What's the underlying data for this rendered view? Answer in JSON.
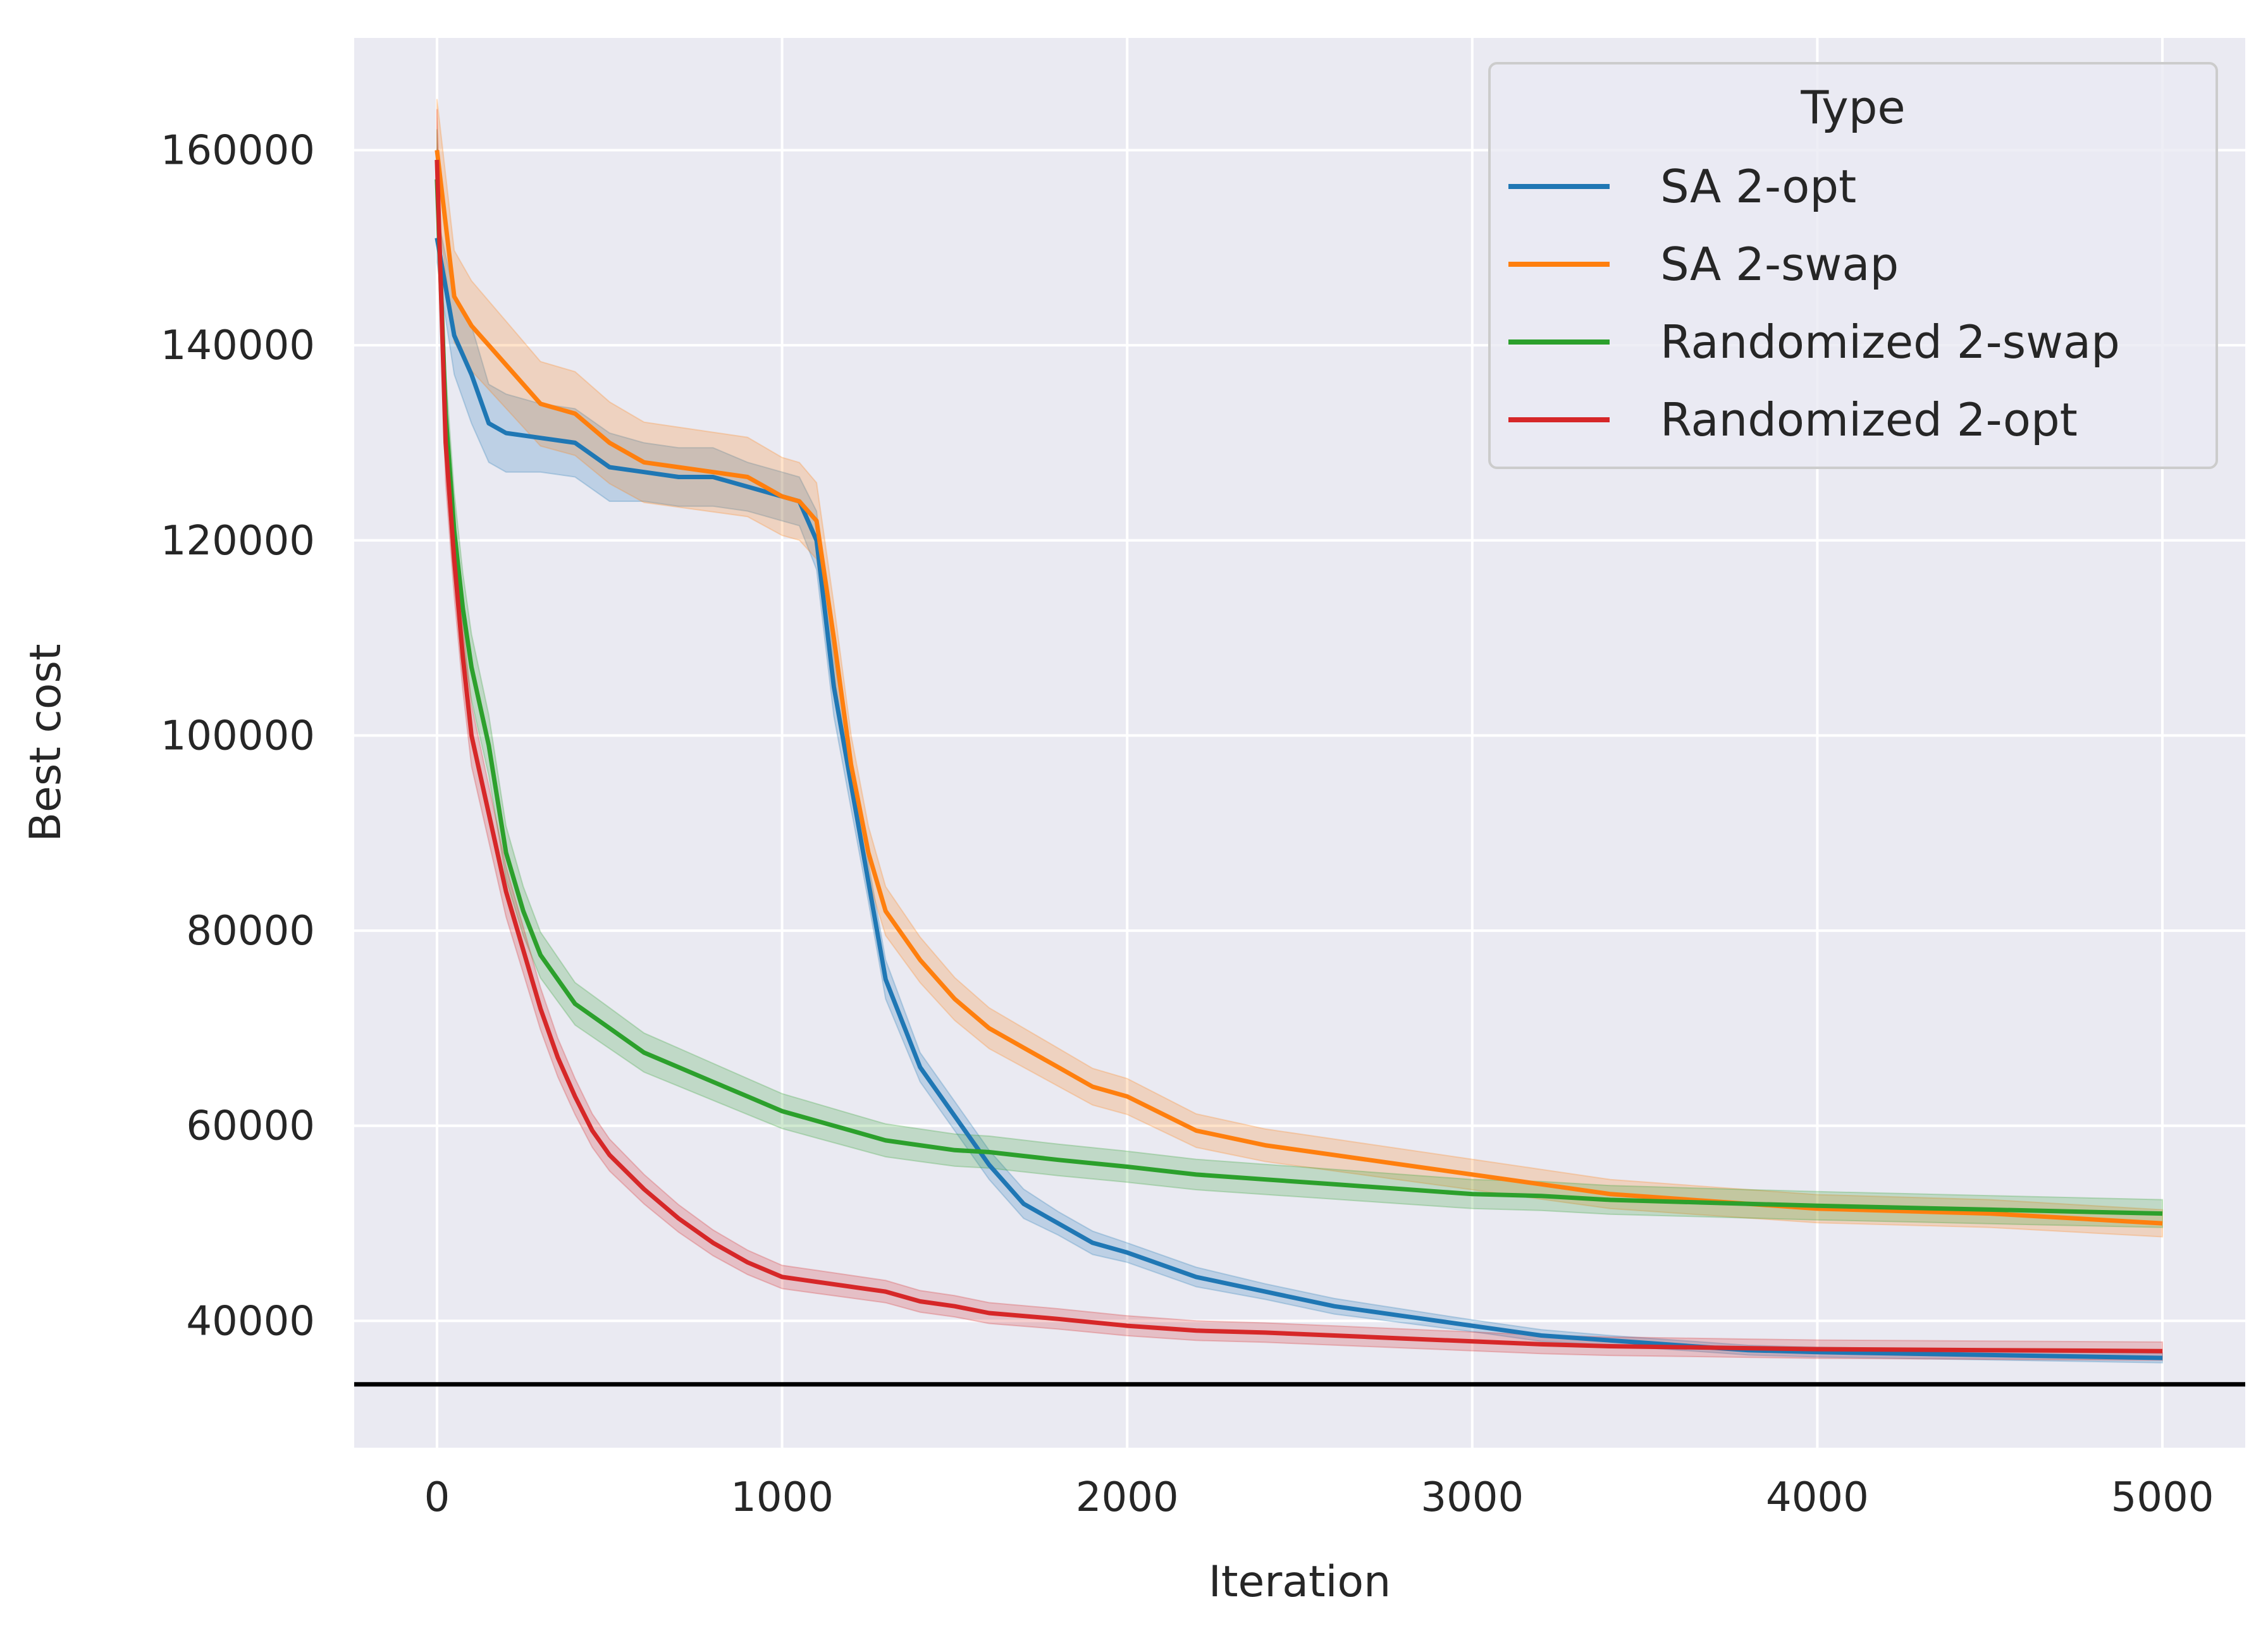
{
  "chart_data": {
    "type": "line",
    "title": "",
    "xlabel": "Iteration",
    "ylabel": "Best cost",
    "xlim": [
      -240,
      5240
    ],
    "ylim": [
      27000,
      171500
    ],
    "xticks": [
      0,
      1000,
      2000,
      3000,
      4000,
      5000
    ],
    "yticks": [
      40000,
      60000,
      80000,
      100000,
      120000,
      140000,
      160000
    ],
    "grid": true,
    "background": "#eaeaf2",
    "legend": {
      "title": "Type",
      "position": "top-right"
    },
    "reference_line": {
      "y": 33500,
      "color": "#000000"
    },
    "series": [
      {
        "name": "SA 2-opt",
        "color": "#1f77b4",
        "x": [
          0,
          50,
          100,
          150,
          200,
          300,
          400,
          500,
          600,
          700,
          800,
          900,
          1000,
          1050,
          1100,
          1150,
          1200,
          1250,
          1300,
          1400,
          1500,
          1600,
          1700,
          1800,
          1900,
          2000,
          2200,
          2400,
          2600,
          2800,
          3000,
          3200,
          3400,
          3600,
          3800,
          4000,
          4500,
          5000
        ],
        "y": [
          151000,
          141000,
          137000,
          132000,
          131000,
          130500,
          130000,
          127500,
          127000,
          126500,
          126500,
          125500,
          124500,
          124000,
          120000,
          105000,
          95000,
          85000,
          75000,
          66000,
          61000,
          56000,
          52000,
          50000,
          48000,
          47000,
          44500,
          43000,
          41500,
          40500,
          39500,
          38500,
          38000,
          37500,
          37000,
          36800,
          36500,
          36200
        ],
        "band": [
          2500,
          4000,
          5000,
          4000,
          4000,
          3500,
          3500,
          3500,
          3000,
          3000,
          3000,
          2500,
          2500,
          2500,
          3000,
          3000,
          2500,
          2000,
          2000,
          1500,
          1500,
          1500,
          1500,
          1200,
          1200,
          1000,
          1000,
          800,
          800,
          700,
          600,
          600,
          500,
          500,
          500,
          500,
          500,
          500
        ]
      },
      {
        "name": "SA 2-swap",
        "color": "#ff7f0e",
        "x": [
          0,
          50,
          100,
          150,
          200,
          300,
          400,
          500,
          600,
          700,
          800,
          900,
          1000,
          1050,
          1100,
          1150,
          1200,
          1250,
          1300,
          1400,
          1500,
          1600,
          1700,
          1800,
          1900,
          2000,
          2200,
          2400,
          2600,
          2800,
          3000,
          3200,
          3400,
          3600,
          3800,
          4000,
          4500,
          5000
        ],
        "y": [
          160000,
          145000,
          142000,
          140000,
          138000,
          134000,
          133000,
          130000,
          128000,
          127500,
          127000,
          126500,
          124500,
          124000,
          122000,
          110000,
          97000,
          88000,
          82000,
          77000,
          73000,
          70000,
          68000,
          66000,
          64000,
          63000,
          59500,
          58000,
          57000,
          56000,
          55000,
          54000,
          53000,
          52500,
          52000,
          51500,
          51000,
          50000
        ]
      },
      {
        "name": "Randomized 2-swap",
        "color": "#2ca02c",
        "x": [
          0,
          25,
          50,
          75,
          100,
          150,
          200,
          250,
          300,
          350,
          400,
          500,
          600,
          700,
          800,
          900,
          1000,
          1100,
          1200,
          1300,
          1400,
          1500,
          1600,
          1800,
          2000,
          2200,
          2400,
          2600,
          2800,
          3000,
          3200,
          3400,
          3600,
          3800,
          4000,
          4500,
          5000
        ],
        "y": [
          157000,
          133000,
          121000,
          113000,
          107000,
          99000,
          88000,
          82000,
          77500,
          75000,
          72500,
          70000,
          67500,
          66000,
          64500,
          63000,
          61500,
          60500,
          59500,
          58500,
          58000,
          57500,
          57300,
          56500,
          55800,
          55000,
          54500,
          54000,
          53500,
          53000,
          52800,
          52400,
          52200,
          52000,
          51800,
          51400,
          51000
        ]
      },
      {
        "name": "Randomized 2-opt",
        "color": "#d62728",
        "x": [
          0,
          25,
          50,
          75,
          100,
          150,
          200,
          250,
          300,
          350,
          400,
          450,
          500,
          600,
          700,
          800,
          900,
          1000,
          1100,
          1200,
          1300,
          1400,
          1500,
          1600,
          1800,
          2000,
          2200,
          2400,
          2600,
          2800,
          3000,
          3200,
          3400,
          3600,
          3800,
          4000,
          4500,
          5000
        ],
        "y": [
          159000,
          130000,
          118000,
          108000,
          100000,
          92000,
          84000,
          78000,
          72000,
          67000,
          63000,
          59500,
          57000,
          53500,
          50500,
          48000,
          46000,
          44500,
          44000,
          43500,
          43000,
          42000,
          41500,
          40800,
          40200,
          39500,
          39000,
          38800,
          38500,
          38200,
          37900,
          37600,
          37400,
          37300,
          37200,
          37100,
          37000,
          36900
        ]
      }
    ]
  }
}
